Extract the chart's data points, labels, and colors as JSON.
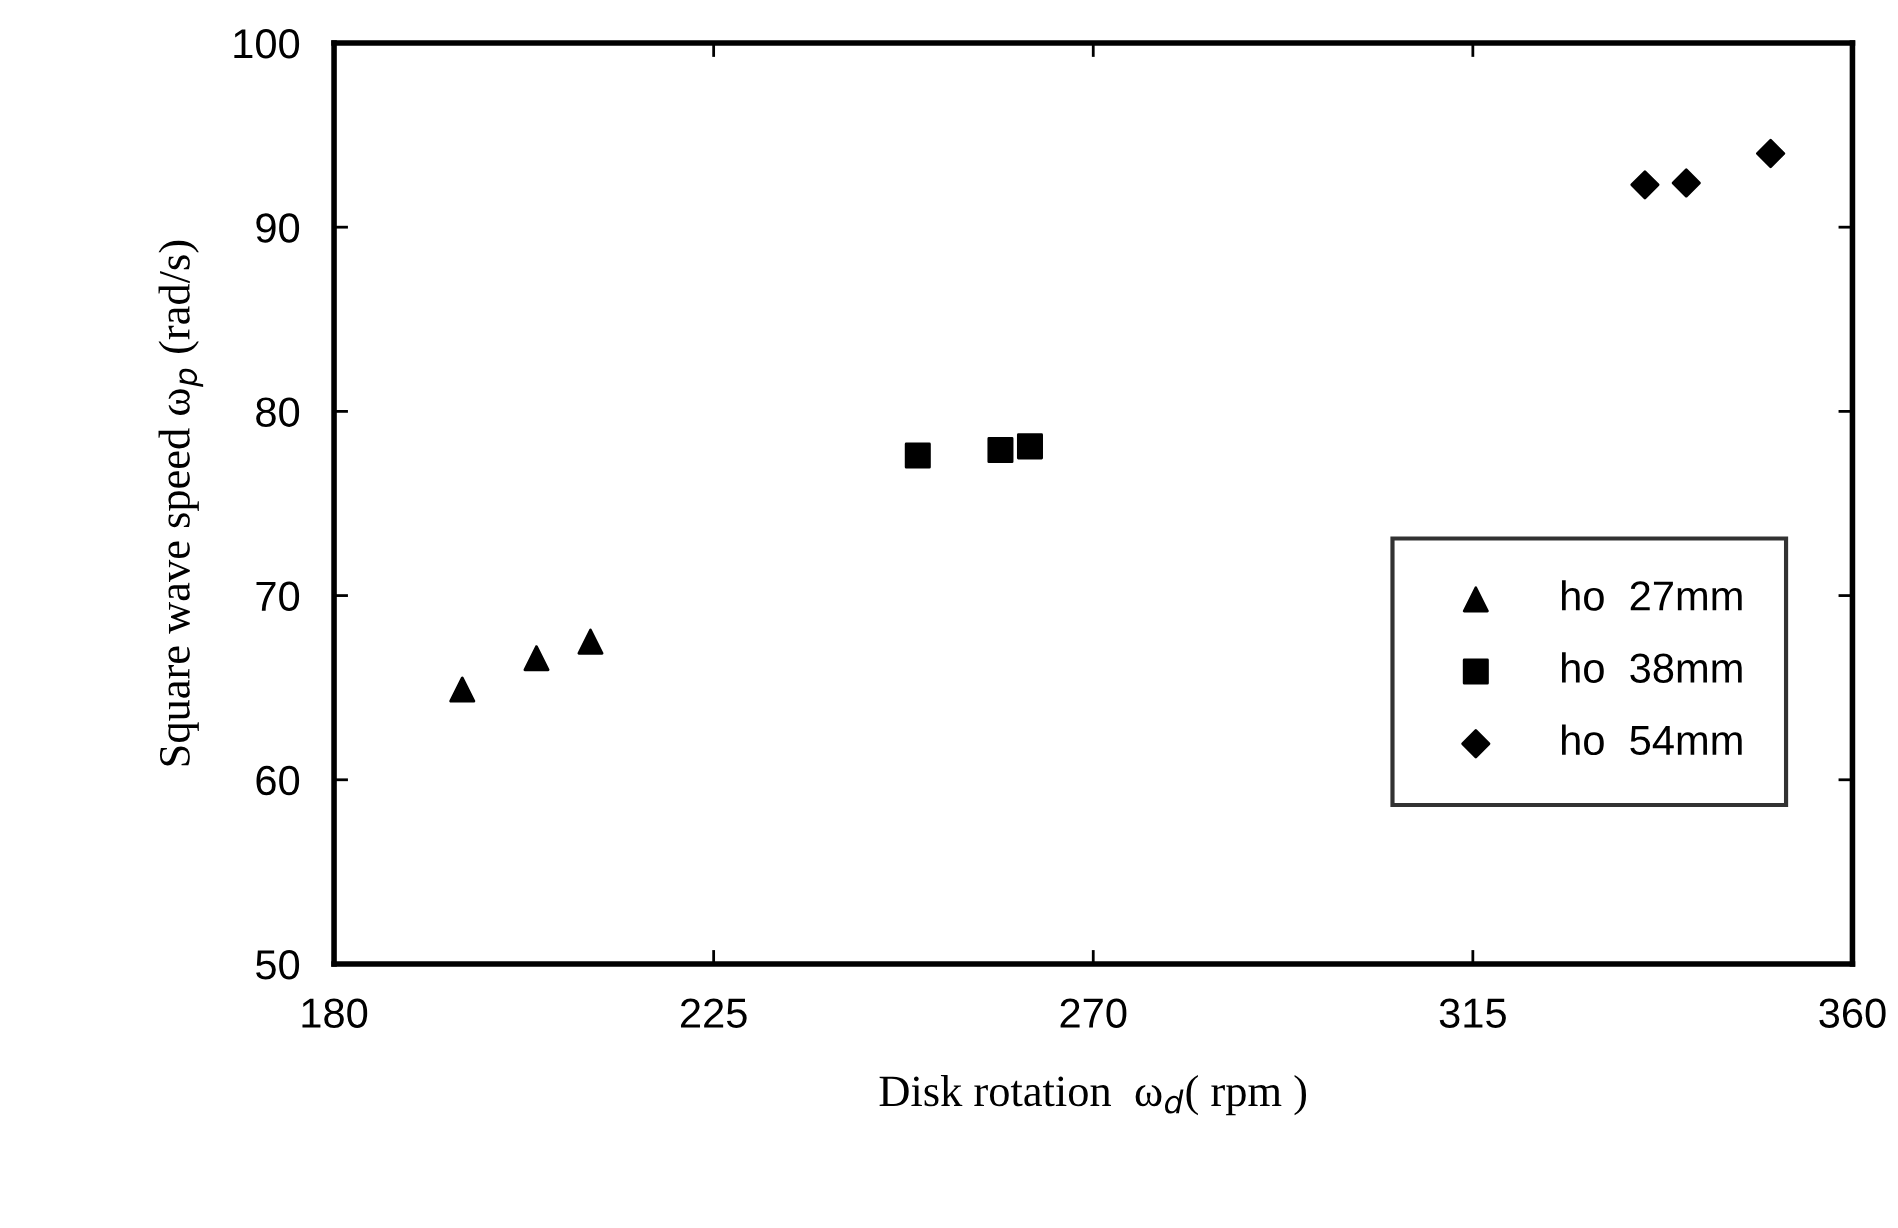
{
  "chart_data": {
    "type": "scatter",
    "xlabel": "Disk rotation  ω$_{d}$( rpm )",
    "ylabel": "Square wave speed ω$_{p}$ (rad/s)",
    "xlim": [
      180,
      360
    ],
    "xticks": [
      180,
      225,
      270,
      315,
      360
    ],
    "ylim": [
      50,
      100
    ],
    "yticks": [
      50,
      60,
      70,
      80,
      90,
      100
    ],
    "grid": false,
    "legend": "bottom right",
    "series": [
      {
        "name": "ho  27mm",
        "color": "#000000",
        "marker": "triangle",
        "x": [
          195.2,
          204,
          210.4
        ],
        "values": [
          64.9,
          66.6,
          67.5
        ]
      },
      {
        "name": "ho  38mm",
        "color": "#000000",
        "marker": "square",
        "x": [
          249.2,
          259,
          262.5
        ],
        "values": [
          77.6,
          77.9,
          78.1
        ]
      },
      {
        "name": "ho  54mm",
        "color": "#000000",
        "marker": "diamond",
        "x": [
          335.4,
          340.3,
          350.3
        ],
        "values": [
          92.3,
          92.4,
          94.0
        ]
      }
    ]
  }
}
